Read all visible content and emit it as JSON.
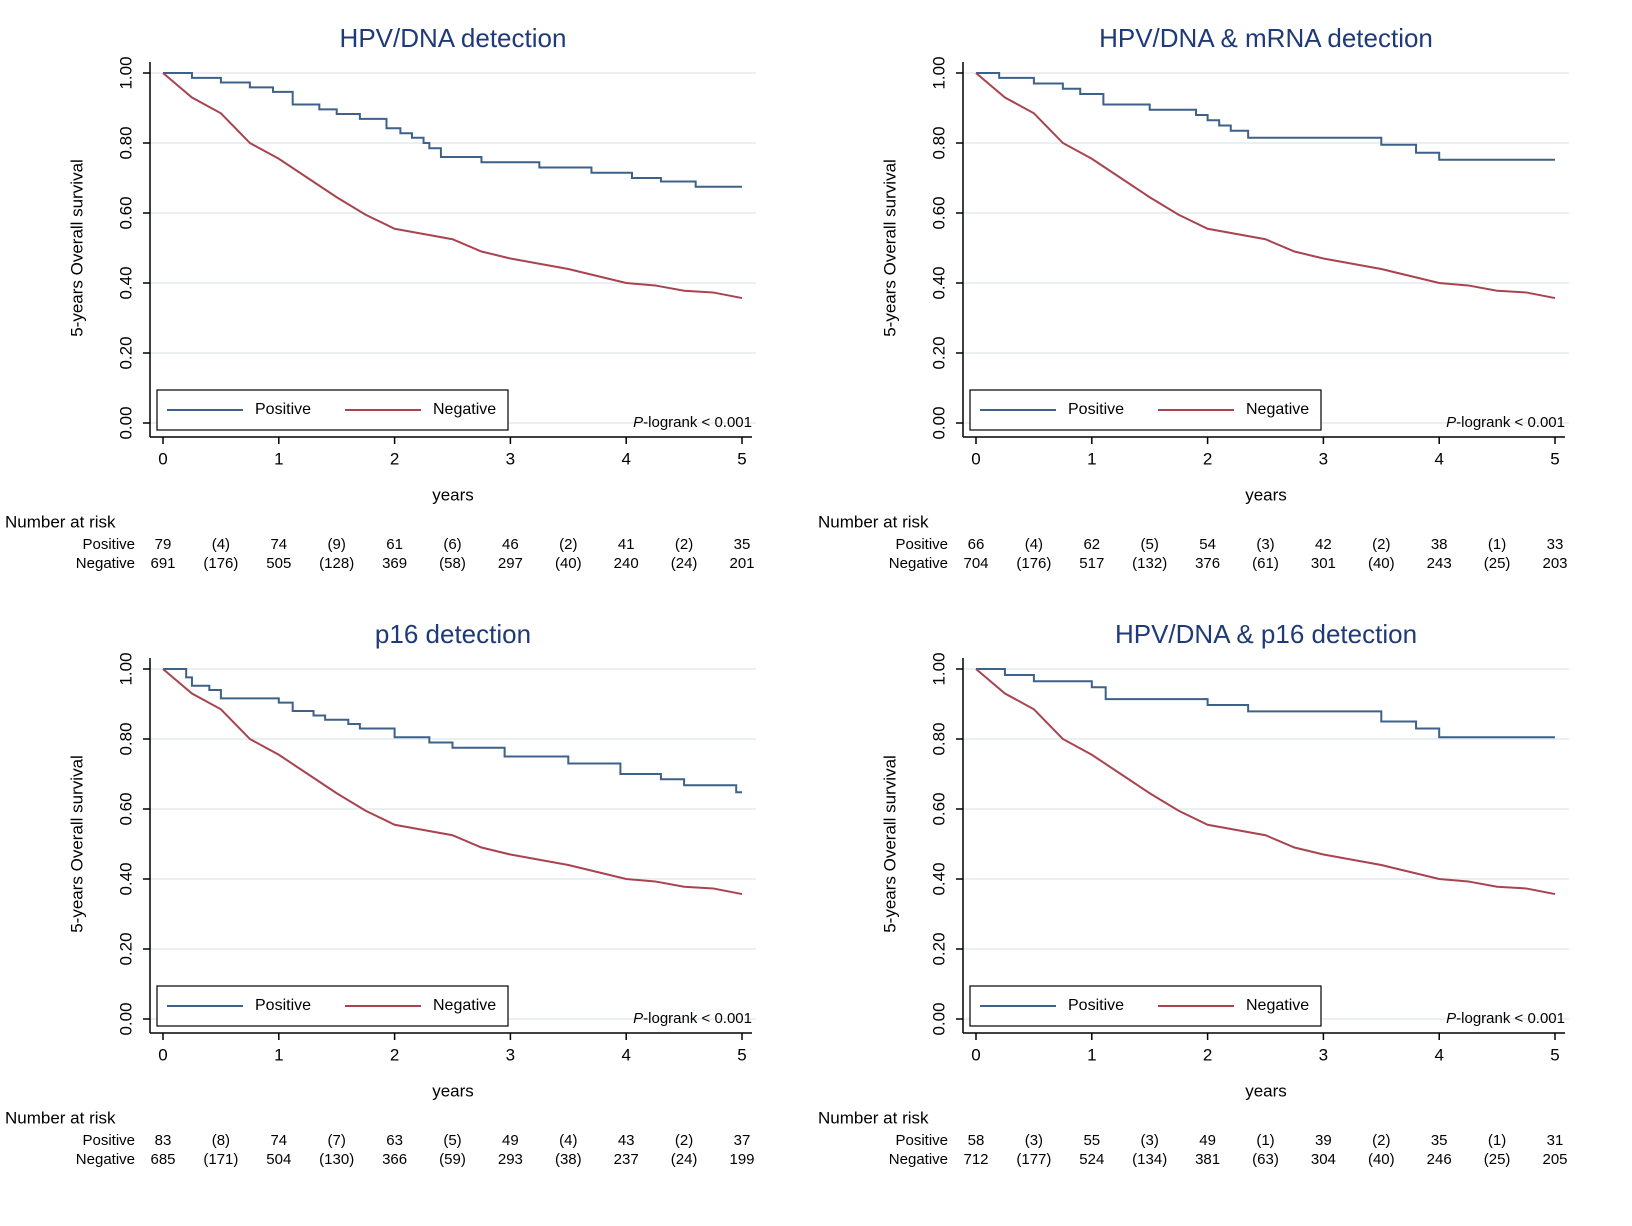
{
  "chart_data": [
    {
      "type": "line",
      "title": "HPV/DNA detection",
      "y_label": "5-years Overall survival",
      "x_label": "years",
      "xlim": [
        0,
        5
      ],
      "xticks": [
        0,
        1,
        2,
        3,
        4,
        5
      ],
      "ylim": [
        0,
        1
      ],
      "yticks": [
        {
          "value": 0,
          "label": "0.00"
        },
        {
          "value": 0.2,
          "label": "0.20"
        },
        {
          "value": 0.4,
          "label": "0.40"
        },
        {
          "value": 0.6,
          "label": "0.60"
        },
        {
          "value": 0.8,
          "label": "0.80"
        },
        {
          "value": 1,
          "label": "1.00"
        }
      ],
      "grid": true,
      "legend": "bottom-left",
      "annotation": {
        "italic": "P",
        "text": "-logrank < 0.001"
      },
      "series": [
        {
          "name": "Positive",
          "color": "#3d6188",
          "step": true,
          "x": [
            0,
            0.25,
            0.5,
            0.75,
            0.95,
            1.12,
            1.35,
            1.5,
            1.7,
            1.93,
            2.05,
            2.15,
            2.25,
            2.3,
            2.4,
            2.75,
            3.25,
            3.7,
            4.05,
            4.3,
            4.6,
            5
          ],
          "values": [
            1,
            0.986,
            0.973,
            0.959,
            0.946,
            0.91,
            0.896,
            0.883,
            0.869,
            0.842,
            0.828,
            0.815,
            0.8,
            0.785,
            0.76,
            0.745,
            0.73,
            0.715,
            0.7,
            0.69,
            0.675,
            0.675
          ]
        },
        {
          "name": "Negative",
          "color": "#a8434f",
          "step": false,
          "x": [
            0,
            0.25,
            0.5,
            0.75,
            1,
            1.25,
            1.5,
            1.75,
            2,
            2.25,
            2.5,
            2.75,
            3,
            3.25,
            3.5,
            3.75,
            4,
            4.25,
            4.5,
            4.75,
            5
          ],
          "values": [
            1,
            0.93,
            0.885,
            0.8,
            0.755,
            0.7,
            0.645,
            0.595,
            0.555,
            0.54,
            0.525,
            0.49,
            0.47,
            0.455,
            0.44,
            0.42,
            0.4,
            0.393,
            0.378,
            0.373,
            0.357
          ]
        }
      ],
      "risk_table": {
        "title": "Number at risk",
        "rows": [
          {
            "name": "Positive",
            "at_risk": [
              79,
              74,
              61,
              46,
              41,
              35
            ],
            "censored": [
              4,
              9,
              6,
              2,
              2
            ],
            "censored_labels": [
              "(4)",
              "(9)",
              "(6)",
              "(2)",
              "(2)"
            ]
          },
          {
            "name": "Negative",
            "at_risk": [
              691,
              505,
              369,
              297,
              240,
              201
            ],
            "censored": [
              176,
              128,
              58,
              40,
              24
            ],
            "censored_labels": [
              "(176)",
              "(128)",
              "(58)",
              "(40)",
              "(24)"
            ]
          }
        ]
      }
    },
    {
      "type": "line",
      "title": "HPV/DNA & mRNA detection",
      "y_label": "5-years Overall survival",
      "x_label": "years",
      "xlim": [
        0,
        5
      ],
      "xticks": [
        0,
        1,
        2,
        3,
        4,
        5
      ],
      "ylim": [
        0,
        1
      ],
      "yticks": [
        {
          "value": 0,
          "label": "0.00"
        },
        {
          "value": 0.2,
          "label": "0.20"
        },
        {
          "value": 0.4,
          "label": "0.40"
        },
        {
          "value": 0.6,
          "label": "0.60"
        },
        {
          "value": 0.8,
          "label": "0.80"
        },
        {
          "value": 1,
          "label": "1.00"
        }
      ],
      "grid": true,
      "legend": "bottom-left",
      "annotation": {
        "italic": "P",
        "text": "-logrank < 0.001"
      },
      "series": [
        {
          "name": "Positive",
          "color": "#3d6188",
          "step": true,
          "x": [
            0,
            0.2,
            0.5,
            0.75,
            0.9,
            1.1,
            1.5,
            1.9,
            2.0,
            2.1,
            2.2,
            2.35,
            3.5,
            3.8,
            4.0,
            5
          ],
          "values": [
            1,
            0.986,
            0.97,
            0.955,
            0.94,
            0.91,
            0.895,
            0.88,
            0.865,
            0.85,
            0.835,
            0.815,
            0.795,
            0.772,
            0.752,
            0.752
          ]
        },
        {
          "name": "Negative",
          "color": "#a8434f",
          "step": false,
          "x": [
            0,
            0.25,
            0.5,
            0.75,
            1,
            1.25,
            1.5,
            1.75,
            2,
            2.25,
            2.5,
            2.75,
            3,
            3.25,
            3.5,
            3.75,
            4,
            4.25,
            4.5,
            4.75,
            5
          ],
          "values": [
            1,
            0.93,
            0.885,
            0.8,
            0.755,
            0.7,
            0.645,
            0.595,
            0.555,
            0.54,
            0.525,
            0.49,
            0.47,
            0.455,
            0.44,
            0.42,
            0.4,
            0.393,
            0.378,
            0.373,
            0.357
          ]
        }
      ],
      "risk_table": {
        "title": "Number at risk",
        "rows": [
          {
            "name": "Positive",
            "at_risk": [
              66,
              62,
              54,
              42,
              38,
              33
            ],
            "censored": [
              4,
              5,
              3,
              2,
              1
            ],
            "censored_labels": [
              "(4)",
              "(5)",
              "(3)",
              "(2)",
              "(1)"
            ]
          },
          {
            "name": "Negative",
            "at_risk": [
              704,
              517,
              376,
              301,
              243,
              203
            ],
            "censored": [
              176,
              132,
              61,
              40,
              25
            ],
            "censored_labels": [
              "(176)",
              "(132)",
              "(61)",
              "(40)",
              "(25)"
            ]
          }
        ]
      }
    },
    {
      "type": "line",
      "title": "p16 detection",
      "y_label": "5-years Overall survival",
      "x_label": "years",
      "xlim": [
        0,
        5
      ],
      "xticks": [
        0,
        1,
        2,
        3,
        4,
        5
      ],
      "ylim": [
        0,
        1
      ],
      "yticks": [
        {
          "value": 0,
          "label": "0.00"
        },
        {
          "value": 0.2,
          "label": "0.20"
        },
        {
          "value": 0.4,
          "label": "0.40"
        },
        {
          "value": 0.6,
          "label": "0.60"
        },
        {
          "value": 0.8,
          "label": "0.80"
        },
        {
          "value": 1,
          "label": "1.00"
        }
      ],
      "grid": true,
      "legend": "bottom-left",
      "annotation": {
        "italic": "P",
        "text": "-logrank < 0.001"
      },
      "series": [
        {
          "name": "Positive",
          "color": "#3d6188",
          "step": true,
          "x": [
            0,
            0.2,
            0.25,
            0.4,
            0.5,
            1.0,
            1.12,
            1.3,
            1.4,
            1.6,
            1.7,
            2.0,
            2.3,
            2.5,
            2.95,
            3.5,
            3.95,
            4.3,
            4.5,
            4.95,
            5
          ],
          "values": [
            1,
            0.976,
            0.952,
            0.94,
            0.916,
            0.904,
            0.88,
            0.867,
            0.855,
            0.843,
            0.83,
            0.805,
            0.79,
            0.775,
            0.75,
            0.73,
            0.7,
            0.685,
            0.668,
            0.648,
            0.648
          ]
        },
        {
          "name": "Negative",
          "color": "#a8434f",
          "step": false,
          "x": [
            0,
            0.25,
            0.5,
            0.75,
            1,
            1.25,
            1.5,
            1.75,
            2,
            2.25,
            2.5,
            2.75,
            3,
            3.25,
            3.5,
            3.75,
            4,
            4.25,
            4.5,
            4.75,
            5
          ],
          "values": [
            1,
            0.93,
            0.885,
            0.8,
            0.755,
            0.7,
            0.645,
            0.595,
            0.555,
            0.54,
            0.525,
            0.49,
            0.47,
            0.455,
            0.44,
            0.42,
            0.4,
            0.393,
            0.378,
            0.373,
            0.357
          ]
        }
      ],
      "risk_table": {
        "title": "Number at risk",
        "rows": [
          {
            "name": "Positive",
            "at_risk": [
              83,
              74,
              63,
              49,
              43,
              37
            ],
            "censored": [
              8,
              7,
              5,
              4,
              2
            ],
            "censored_labels": [
              "(8)",
              "(7)",
              "(5)",
              "(4)",
              "(2)"
            ]
          },
          {
            "name": "Negative",
            "at_risk": [
              685,
              504,
              366,
              293,
              237,
              199
            ],
            "censored": [
              171,
              130,
              59,
              38,
              24
            ],
            "censored_labels": [
              "(171)",
              "(130)",
              "(59)",
              "(38)",
              "(24)"
            ]
          }
        ]
      }
    },
    {
      "type": "line",
      "title": "HPV/DNA & p16 detection",
      "y_label": "5-years Overall survival",
      "x_label": "years",
      "xlim": [
        0,
        5
      ],
      "xticks": [
        0,
        1,
        2,
        3,
        4,
        5
      ],
      "ylim": [
        0,
        1
      ],
      "yticks": [
        {
          "value": 0,
          "label": "0.00"
        },
        {
          "value": 0.2,
          "label": "0.20"
        },
        {
          "value": 0.4,
          "label": "0.40"
        },
        {
          "value": 0.6,
          "label": "0.60"
        },
        {
          "value": 0.8,
          "label": "0.80"
        },
        {
          "value": 1,
          "label": "1.00"
        }
      ],
      "grid": true,
      "legend": "bottom-left",
      "annotation": {
        "italic": "P",
        "text": "-logrank < 0.001"
      },
      "series": [
        {
          "name": "Positive",
          "color": "#3d6188",
          "step": true,
          "x": [
            0,
            0.25,
            0.5,
            1.0,
            1.12,
            2.0,
            2.35,
            3.5,
            3.8,
            4.0,
            5
          ],
          "values": [
            1,
            0.983,
            0.965,
            0.948,
            0.914,
            0.897,
            0.879,
            0.85,
            0.83,
            0.805,
            0.805
          ]
        },
        {
          "name": "Negative",
          "color": "#a8434f",
          "step": false,
          "x": [
            0,
            0.25,
            0.5,
            0.75,
            1,
            1.25,
            1.5,
            1.75,
            2,
            2.25,
            2.5,
            2.75,
            3,
            3.25,
            3.5,
            3.75,
            4,
            4.25,
            4.5,
            4.75,
            5
          ],
          "values": [
            1,
            0.93,
            0.885,
            0.8,
            0.755,
            0.7,
            0.645,
            0.595,
            0.555,
            0.54,
            0.525,
            0.49,
            0.47,
            0.455,
            0.44,
            0.42,
            0.4,
            0.393,
            0.378,
            0.373,
            0.357
          ]
        }
      ],
      "risk_table": {
        "title": "Number at risk",
        "rows": [
          {
            "name": "Positive",
            "at_risk": [
              58,
              55,
              49,
              39,
              35,
              31
            ],
            "censored": [
              3,
              3,
              1,
              2,
              1
            ],
            "censored_labels": [
              "(3)",
              "(3)",
              "(1)",
              "(2)",
              "(1)"
            ]
          },
          {
            "name": "Negative",
            "at_risk": [
              712,
              524,
              381,
              304,
              246,
              205
            ],
            "censored": [
              177,
              134,
              63,
              40,
              25
            ],
            "censored_labels": [
              "(177)",
              "(134)",
              "(63)",
              "(40)",
              "(25)"
            ]
          }
        ]
      }
    }
  ]
}
